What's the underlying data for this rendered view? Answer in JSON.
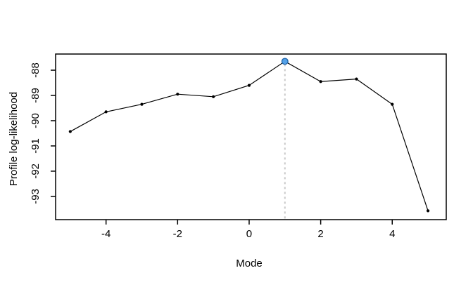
{
  "window": {
    "background": "#ffffff"
  },
  "chart_data": {
    "type": "line",
    "title": "",
    "xlabel": "Mode",
    "ylabel": "Profile log-likelihood",
    "x": [
      -5,
      -4,
      -3,
      -2,
      -1,
      0,
      1,
      2,
      3,
      4,
      5
    ],
    "y": [
      -90.43,
      -89.65,
      -89.35,
      -88.95,
      -89.05,
      -88.6,
      -87.65,
      -88.45,
      -88.35,
      -89.35,
      -93.57
    ],
    "xlim": [
      -5.41,
      5.51
    ],
    "ylim": [
      -93.92,
      -87.36
    ],
    "x_ticks": [
      -4,
      -2,
      0,
      2,
      4
    ],
    "x_tick_labels": [
      "-4",
      "-2",
      "0",
      "2",
      "4"
    ],
    "y_ticks": [
      -88,
      -89,
      -90,
      -91,
      -92,
      -93
    ],
    "y_tick_labels": [
      "-88",
      "-89",
      "-90",
      "-91",
      "-92",
      "-93"
    ],
    "grid": false,
    "legend_position": "none",
    "line_color": "#000000",
    "point_color": "#000000",
    "axis_color": "#000000",
    "highlight_point": {
      "x": 1,
      "y": -87.65,
      "fill": "#55A2E8",
      "stroke": "#1F63A8",
      "guide_line_color": "#C9C9C9",
      "guide_line_style": "dotted"
    }
  }
}
